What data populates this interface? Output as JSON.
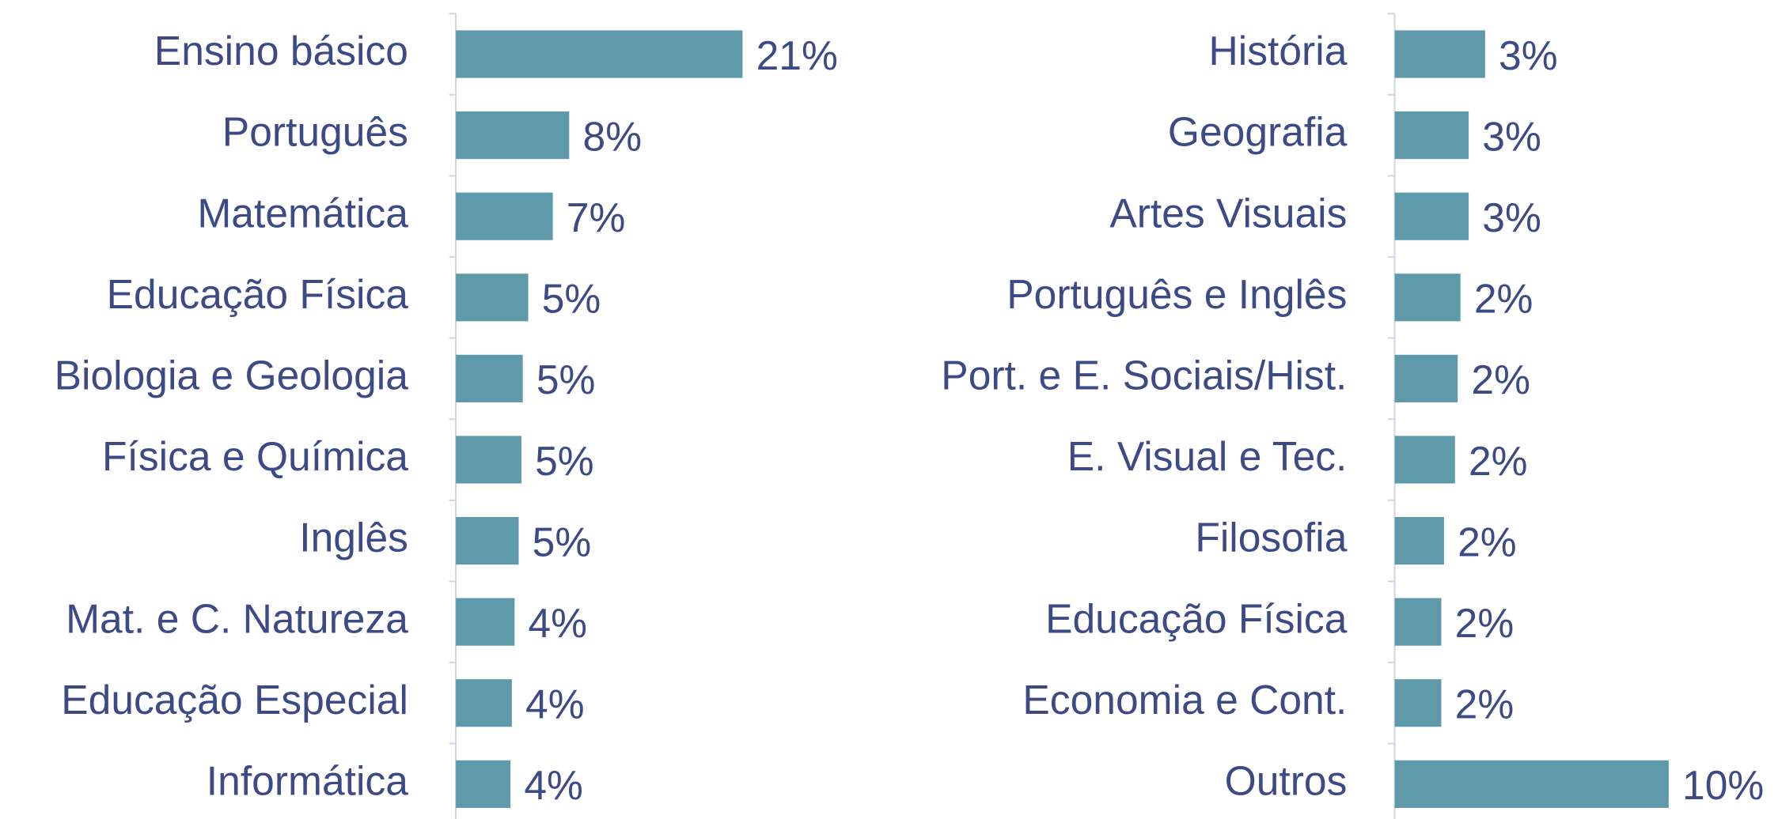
{
  "chart_data": [
    {
      "type": "bar",
      "orientation": "horizontal",
      "color": "#5f9aab",
      "categories": [
        "Ensino básico",
        "Português",
        "Matemática",
        "Educação Física",
        "Biologia e Geologia",
        "Física e Química",
        "Inglês",
        "Mat. e C. Natureza",
        "Educação Especial",
        "Informática"
      ],
      "values": [
        21,
        8.3,
        7.1,
        5.3,
        4.9,
        4.8,
        4.6,
        4.3,
        4.1,
        4.0
      ],
      "value_labels": [
        "21%",
        "8%",
        "7%",
        "5%",
        "5%",
        "5%",
        "5%",
        "4%",
        "4%",
        "4%"
      ],
      "xlim": [
        0,
        25
      ]
    },
    {
      "type": "bar",
      "orientation": "horizontal",
      "color": "#5f9aab",
      "categories": [
        "História",
        "Geografia",
        "Artes Visuais",
        "Português e Inglês",
        "Port. e E. Sociais/Hist.",
        "E. Visual e Tec.",
        "Filosofia",
        "Educação Física",
        "Economia e Cont.",
        "Outros"
      ],
      "values": [
        3.3,
        2.7,
        2.7,
        2.4,
        2.3,
        2.2,
        1.8,
        1.7,
        1.7,
        10
      ],
      "value_labels": [
        "3%",
        "3%",
        "3%",
        "2%",
        "2%",
        "2%",
        "2%",
        "2%",
        "2%",
        "10%"
      ],
      "xlim": [
        0,
        12
      ]
    }
  ]
}
